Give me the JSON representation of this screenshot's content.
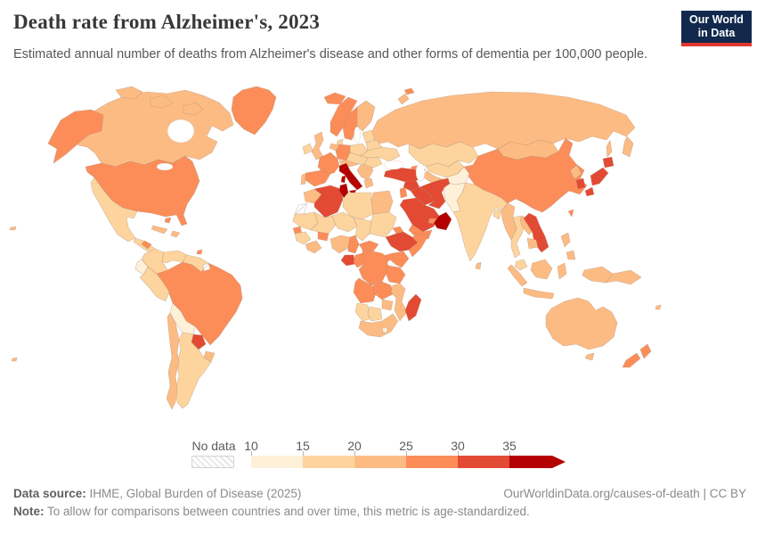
{
  "header": {
    "title": "Death rate from Alzheimer's, 2023",
    "subtitle": "Estimated annual number of deaths from Alzheimer's disease and other forms of dementia per 100,000 people.",
    "logo_line1": "Our World",
    "logo_line2": "in Data",
    "logo_bg": "#12294d",
    "logo_accent": "#e0362d"
  },
  "chart_data": {
    "type": "choropleth_map",
    "title": "Death rate from Alzheimer's",
    "year": "2023",
    "metric": "Deaths from Alzheimer's disease and other dementias per 100,000 people (age-standardized)",
    "legend": {
      "no_data_label": "No data",
      "tick_labels": [
        "10",
        "15",
        "20",
        "25",
        "30",
        "35"
      ],
      "bin_edges": [
        10,
        15,
        20,
        25,
        30,
        35
      ],
      "bin_colors": [
        "#fef0d9",
        "#fdd49e",
        "#fdbb84",
        "#fc8d59",
        "#e34a33",
        "#b30000"
      ],
      "open_ended_max": true,
      "border_color": "#a8886e"
    },
    "regions": {
      "greenland": 27,
      "canada": 22,
      "usa": 27,
      "mexico": 17,
      "central-america": 17,
      "honduras": 27,
      "cuba": 22,
      "hispaniola": 22,
      "bahamas": 27,
      "trinidad": 27,
      "colombia": 17,
      "venezuela": 17,
      "guyanas": 17,
      "french-guiana": null,
      "ecuador": 13,
      "peru": 17,
      "brazil": 27,
      "bolivia": 12,
      "paraguay": 32,
      "uruguay": 22,
      "argentina": 18,
      "chile": 22,
      "iceland": 27,
      "ireland": 17,
      "uk": 22,
      "norway": 27,
      "sweden": 27,
      "finland": 22,
      "denmark": 17,
      "baltics": 17,
      "poland": 17,
      "germany": 27,
      "benelux": 22,
      "france": 27,
      "spain": 27,
      "portugal": 22,
      "italy": 36,
      "alpine": 22,
      "czech-hungary": 17,
      "balkans": 22,
      "greece": 22,
      "romania": 17,
      "ukraine": 17,
      "belarus": 17,
      "russia": 22,
      "kazakhstan": 17,
      "uzbekistan": 17,
      "turkmenistan": 22,
      "kyrgyzstan": 27,
      "caucasus": 27,
      "mongolia": 22,
      "china": 27,
      "north-korea": 22,
      "south-korea": 32,
      "japan": 32,
      "taiwan": 27,
      "afghanistan": 13,
      "pakistan": 12,
      "india": 17,
      "sri-lanka": 22,
      "bangladesh": 17,
      "myanmar": 22,
      "thailand": 18,
      "laos": 22,
      "vietnam": 32,
      "cambodia": 22,
      "malaysia": 17,
      "indonesia": 22,
      "papua-new-guinea": 22,
      "philippines": 22,
      "turkey": 32,
      "syria": 32,
      "levant": 27,
      "iraq": 32,
      "iran": 32,
      "saudi-arabia": 32,
      "oman": 37,
      "uae": 27,
      "yemen": 27,
      "egypt": 22,
      "morocco": 22,
      "western-sahara": null,
      "algeria": 32,
      "tunisia": 37,
      "libya": 17,
      "mauritania": 17,
      "mali": 17,
      "niger": 17,
      "chad": 17,
      "sudan": 17,
      "eritrea": 27,
      "ethiopia": 32,
      "somalia": 27,
      "senegal": 27,
      "guinea": 17,
      "ivory-coast-ghana": 22,
      "burkina-faso": 27,
      "nigeria": 22,
      "cameroon": 27,
      "central-african-republic": 27,
      "gabon": 32,
      "congo": 27,
      "drc": 27,
      "uganda": 27,
      "kenya": 27,
      "tanzania": 27,
      "angola": 27,
      "zambia": 27,
      "mozambique": 22,
      "zimbabwe": 22,
      "namibia": 17,
      "botswana": 18,
      "south-africa": 22,
      "lesotho": null,
      "madagascar": 32,
      "australia": 22,
      "new-zealand": 27,
      "pacific-islands": 22
    }
  },
  "footer": {
    "data_source_label": "Data source:",
    "data_source_text": " IHME, Global Burden of Disease (2025)",
    "link_text": "OurWorldinData.org/causes-of-death | CC BY",
    "note_label": "Note:",
    "note_text": " To allow for comparisons between countries and over time, this metric is age-standardized."
  }
}
